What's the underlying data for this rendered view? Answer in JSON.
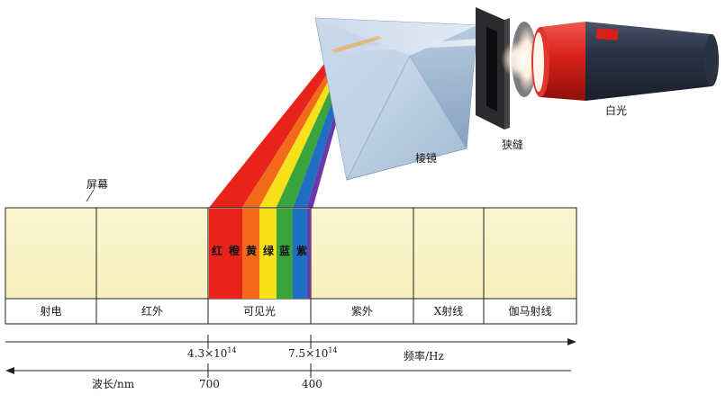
{
  "labels": {
    "screen": "屏幕",
    "prism": "棱镜",
    "slit": "狭缝",
    "white_light": "白光"
  },
  "bands": [
    {
      "key": "radio",
      "label": "射电"
    },
    {
      "key": "infrared",
      "label": "红外"
    },
    {
      "key": "visible",
      "label": "可见光"
    },
    {
      "key": "ultraviolet",
      "label": "紫外"
    },
    {
      "key": "xray",
      "label": "X射线"
    },
    {
      "key": "gamma",
      "label": "伽马射线"
    }
  ],
  "visible_colors": [
    {
      "label": "红",
      "hex": "#e8231c"
    },
    {
      "label": "橙",
      "hex": "#f26a1a"
    },
    {
      "label": "黄",
      "hex": "#f7e11b"
    },
    {
      "label": "绿",
      "hex": "#3aa33c"
    },
    {
      "label": "蓝",
      "hex": "#1f6fc4"
    },
    {
      "label": "紫",
      "hex": "#6a3aa8"
    }
  ],
  "axes": {
    "frequency": {
      "label": "频率/Hz",
      "tick_low": {
        "base": "4.3×10",
        "exp": "14"
      },
      "tick_high": {
        "base": "7.5×10",
        "exp": "14"
      }
    },
    "wavelength": {
      "label": "波长/nm",
      "tick_low": "700",
      "tick_high": "400"
    }
  },
  "colors": {
    "screen_fill": "#faf5cc",
    "flashlight_body": "#e52a22",
    "flashlight_dark": "#2b3242"
  }
}
